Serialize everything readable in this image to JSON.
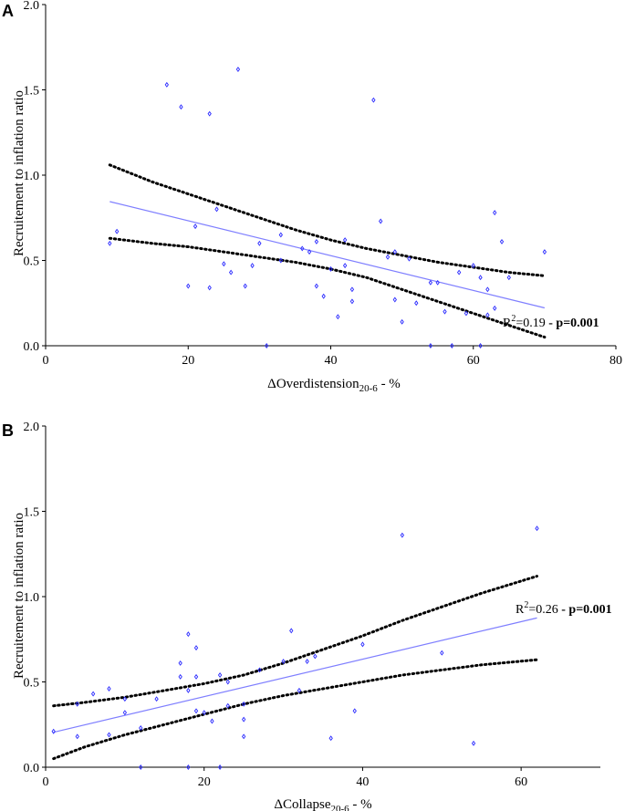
{
  "colors": {
    "points": "#2a2aff",
    "fit": "#7f7fff",
    "ci": "#000000",
    "axis": "#000000"
  },
  "chart_data": [
    {
      "panel": "A",
      "type": "scatter",
      "xlabel_main": "ΔOverdistension",
      "xlabel_sub": "20-6",
      "xlabel_suffix": " - %",
      "ylabel": "Recruitement to inflation ratio",
      "xlim": [
        0,
        80
      ],
      "ylim": [
        0,
        2.0
      ],
      "xticks": [
        0,
        20,
        40,
        60,
        80
      ],
      "yticks": [
        0.0,
        0.5,
        1.0,
        1.5,
        2.0
      ],
      "ytick_labels": [
        "0.0",
        "0.5",
        "1.0",
        "1.5",
        "2.0"
      ],
      "annotation": {
        "r2_prefix": "R",
        "r2_sup": "2",
        "r2_value": "=0.19",
        "sep": " - ",
        "p": "p=0.001"
      },
      "fit": {
        "x": [
          9,
          70
        ],
        "y": [
          0.845,
          0.222
        ]
      },
      "ci_upper": {
        "x": [
          9,
          15,
          20,
          25,
          30,
          35,
          40,
          45,
          50,
          55,
          60,
          65,
          70
        ],
        "y": [
          1.06,
          0.96,
          0.89,
          0.82,
          0.75,
          0.68,
          0.62,
          0.57,
          0.53,
          0.49,
          0.46,
          0.43,
          0.41
        ]
      },
      "ci_lower": {
        "x": [
          9,
          15,
          20,
          25,
          30,
          35,
          40,
          45,
          50,
          55,
          60,
          65,
          70
        ],
        "y": [
          0.63,
          0.6,
          0.58,
          0.55,
          0.52,
          0.49,
          0.45,
          0.4,
          0.33,
          0.26,
          0.19,
          0.12,
          0.05
        ]
      },
      "points": [
        [
          9,
          0.6
        ],
        [
          10,
          0.67
        ],
        [
          17,
          1.53
        ],
        [
          19,
          1.4
        ],
        [
          20,
          0.35
        ],
        [
          21,
          0.7
        ],
        [
          23,
          1.36
        ],
        [
          23,
          0.34
        ],
        [
          24,
          0.8
        ],
        [
          25,
          0.48
        ],
        [
          26,
          0.43
        ],
        [
          27,
          1.62
        ],
        [
          28,
          0.35
        ],
        [
          29,
          0.47
        ],
        [
          30,
          0.6
        ],
        [
          31,
          0.0
        ],
        [
          33,
          0.65
        ],
        [
          33,
          0.5
        ],
        [
          36,
          0.57
        ],
        [
          37,
          0.55
        ],
        [
          38,
          0.61
        ],
        [
          38,
          0.35
        ],
        [
          39,
          0.29
        ],
        [
          40,
          0.45
        ],
        [
          41,
          0.17
        ],
        [
          42,
          0.62
        ],
        [
          42,
          0.47
        ],
        [
          43,
          0.26
        ],
        [
          43,
          0.33
        ],
        [
          46,
          1.44
        ],
        [
          47,
          0.73
        ],
        [
          48,
          0.52
        ],
        [
          49,
          0.55
        ],
        [
          49,
          0.27
        ],
        [
          50,
          0.14
        ],
        [
          51,
          0.51
        ],
        [
          52,
          0.25
        ],
        [
          54,
          0.37
        ],
        [
          55,
          0.37
        ],
        [
          54,
          0.0
        ],
        [
          56,
          0.2
        ],
        [
          57,
          0.0
        ],
        [
          58,
          0.43
        ],
        [
          59,
          0.19
        ],
        [
          60,
          0.47
        ],
        [
          61,
          0.4
        ],
        [
          61,
          0.0
        ],
        [
          62,
          0.33
        ],
        [
          62,
          0.18
        ],
        [
          63,
          0.78
        ],
        [
          63,
          0.22
        ],
        [
          64,
          0.61
        ],
        [
          65,
          0.4
        ],
        [
          70,
          0.55
        ]
      ]
    },
    {
      "panel": "B",
      "type": "scatter",
      "xlabel_main": "ΔCollapse",
      "xlabel_sub": "20-6",
      "xlabel_suffix": " - %",
      "ylabel": "Recruitement to inflation ratio",
      "xlim": [
        0,
        70
      ],
      "ylim": [
        0,
        2.0
      ],
      "xticks": [
        0,
        20,
        40,
        60
      ],
      "yticks": [
        0.0,
        0.5,
        1.0,
        1.5,
        2.0
      ],
      "ytick_labels": [
        "0.0",
        "0.5",
        "1.0",
        "1.5",
        "2.0"
      ],
      "annotation": {
        "r2_prefix": "R",
        "r2_sup": "2",
        "r2_value": "=0.26",
        "sep": " - ",
        "p": "p=0.001"
      },
      "fit": {
        "x": [
          1,
          62
        ],
        "y": [
          0.205,
          0.875
        ]
      },
      "ci_upper": {
        "x": [
          1,
          5,
          10,
          15,
          20,
          25,
          30,
          35,
          40,
          45,
          50,
          55,
          62
        ],
        "y": [
          0.36,
          0.38,
          0.41,
          0.45,
          0.49,
          0.54,
          0.61,
          0.69,
          0.77,
          0.86,
          0.94,
          1.02,
          1.12
        ]
      },
      "ci_lower": {
        "x": [
          1,
          5,
          10,
          15,
          20,
          25,
          30,
          35,
          40,
          45,
          50,
          55,
          62
        ],
        "y": [
          0.05,
          0.12,
          0.19,
          0.25,
          0.31,
          0.37,
          0.42,
          0.46,
          0.5,
          0.54,
          0.57,
          0.6,
          0.63
        ]
      },
      "points": [
        [
          1,
          0.21
        ],
        [
          4,
          0.37
        ],
        [
          4,
          0.18
        ],
        [
          6,
          0.43
        ],
        [
          8,
          0.46
        ],
        [
          8,
          0.19
        ],
        [
          10,
          0.4
        ],
        [
          10,
          0.32
        ],
        [
          12,
          0.23
        ],
        [
          12,
          0.0
        ],
        [
          14,
          0.4
        ],
        [
          17,
          0.61
        ],
        [
          17,
          0.53
        ],
        [
          18,
          0.78
        ],
        [
          18,
          0.45
        ],
        [
          18,
          0.0
        ],
        [
          19,
          0.7
        ],
        [
          19,
          0.53
        ],
        [
          19,
          0.33
        ],
        [
          20,
          0.32
        ],
        [
          21,
          0.27
        ],
        [
          22,
          0.54
        ],
        [
          22,
          0.0
        ],
        [
          23,
          0.5
        ],
        [
          23,
          0.36
        ],
        [
          25,
          0.37
        ],
        [
          25,
          0.28
        ],
        [
          25,
          0.18
        ],
        [
          27,
          0.57
        ],
        [
          30,
          0.62
        ],
        [
          31,
          0.8
        ],
        [
          32,
          0.45
        ],
        [
          33,
          0.62
        ],
        [
          34,
          0.65
        ],
        [
          36,
          0.17
        ],
        [
          39,
          0.33
        ],
        [
          40,
          0.72
        ],
        [
          45,
          1.36
        ],
        [
          50,
          0.67
        ],
        [
          54,
          0.14
        ],
        [
          62,
          1.4
        ]
      ]
    }
  ]
}
